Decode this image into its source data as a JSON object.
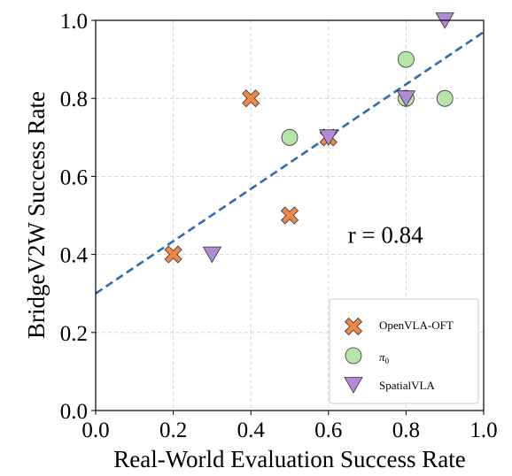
{
  "chart_data": {
    "type": "scatter",
    "xlabel": "Real-World Evaluation Success Rate",
    "ylabel": "BridgeV2W Success Rate",
    "xlim": [
      0.0,
      1.0
    ],
    "ylim": [
      0.0,
      1.0
    ],
    "x_ticks": [
      "0.0",
      "0.2",
      "0.4",
      "0.6",
      "0.8",
      "1.0"
    ],
    "y_ticks": [
      "0.0",
      "0.2",
      "0.4",
      "0.6",
      "0.8",
      "1.0"
    ],
    "grid": true,
    "legend_position": "bottom-right",
    "series": [
      {
        "name": "OpenVLA-OFT",
        "marker": "X",
        "color": "#ee8844",
        "points": [
          {
            "x": 0.2,
            "y": 0.4
          },
          {
            "x": 0.4,
            "y": 0.8
          },
          {
            "x": 0.5,
            "y": 0.5
          },
          {
            "x": 0.6,
            "y": 0.7
          }
        ]
      },
      {
        "name": "π",
        "name_subscript": "0",
        "marker": "circle",
        "color": "#b5e6a8",
        "points": [
          {
            "x": 0.5,
            "y": 0.7
          },
          {
            "x": 0.8,
            "y": 0.8
          },
          {
            "x": 0.8,
            "y": 0.9
          },
          {
            "x": 0.9,
            "y": 0.8
          }
        ]
      },
      {
        "name": "SpatialVLA",
        "marker": "triangle-down",
        "color": "#b18ad6",
        "points": [
          {
            "x": 0.3,
            "y": 0.4
          },
          {
            "x": 0.6,
            "y": 0.7
          },
          {
            "x": 0.8,
            "y": 0.8
          },
          {
            "x": 0.9,
            "y": 1.0
          }
        ]
      }
    ],
    "trend_line": {
      "style": "dashed",
      "color": "#2a6db0",
      "slope": 0.67,
      "intercept": 0.3
    },
    "annotation": {
      "text": "r = 0.84",
      "x": 0.65,
      "y": 0.45
    }
  }
}
